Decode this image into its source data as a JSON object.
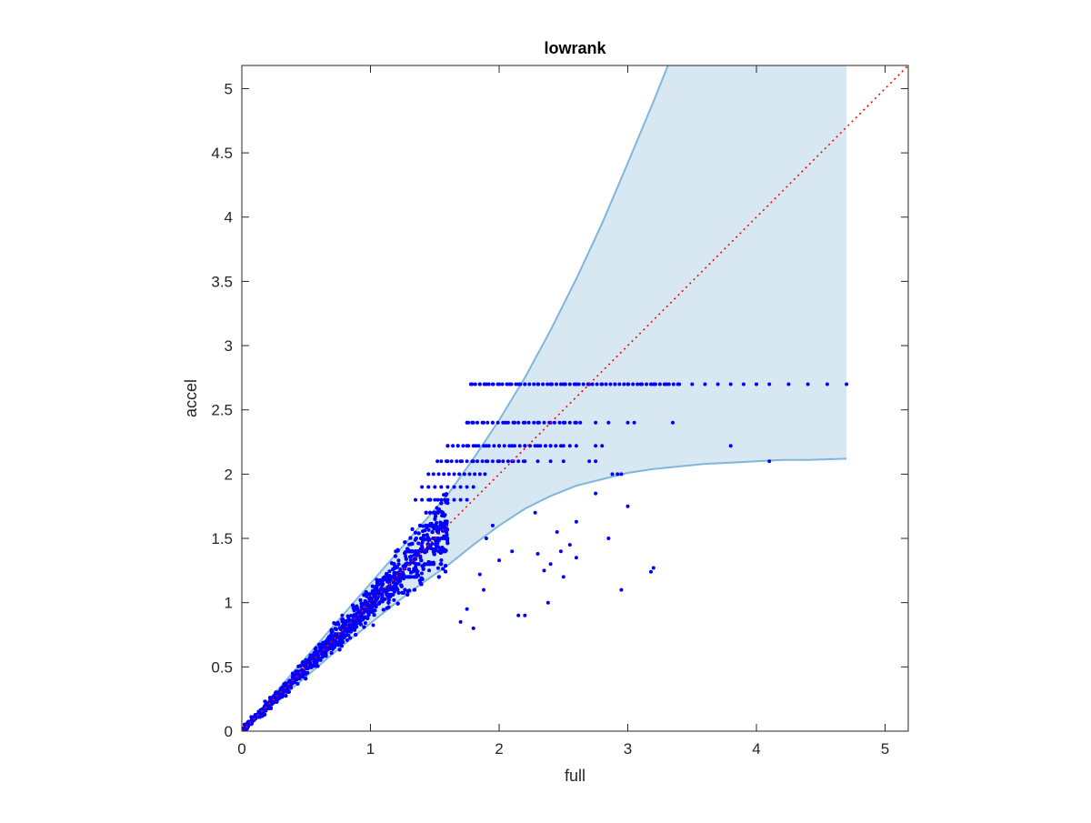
{
  "chart_data": {
    "type": "scatter",
    "title": "lowrank",
    "xlabel": "full",
    "ylabel": "accel",
    "xlim": [
      0,
      5.18
    ],
    "ylim": [
      0,
      5.18
    ],
    "xticks": [
      0,
      1,
      2,
      3,
      4,
      5
    ],
    "xtick_labels": [
      "0",
      "1",
      "2",
      "3",
      "4",
      "5"
    ],
    "yticks": [
      0,
      0.5,
      1,
      1.5,
      2,
      2.5,
      3,
      3.5,
      4,
      4.5,
      5
    ],
    "ytick_labels": [
      "0",
      "0.5",
      "1",
      "1.5",
      "2",
      "2.5",
      "3",
      "3.5",
      "4",
      "4.5",
      "5"
    ],
    "grid": false,
    "colors": {
      "points": "#0000ff",
      "band_fill": "#d8e8f3",
      "band_edge": "#7fb6dc",
      "reference_line": "#ff0000",
      "axes": "#262626"
    },
    "reference_line": {
      "x": [
        0,
        5.18
      ],
      "y": [
        0,
        5.18
      ],
      "style": "dotted"
    },
    "band": {
      "x": [
        0.05,
        0.2,
        0.4,
        0.6,
        0.8,
        1.0,
        1.2,
        1.4,
        1.6,
        1.8,
        2.0,
        2.2,
        2.4,
        2.6,
        2.8,
        3.0,
        3.2,
        3.4,
        3.6,
        3.8,
        4.0,
        4.2,
        4.4,
        4.7
      ],
      "upper": [
        0.06,
        0.23,
        0.46,
        0.69,
        0.92,
        1.15,
        1.38,
        1.61,
        1.84,
        2.12,
        2.42,
        2.75,
        3.12,
        3.52,
        3.95,
        4.42,
        4.9,
        5.4,
        5.9,
        6.4,
        6.9,
        7.4,
        7.9,
        8.6
      ],
      "lower": [
        0.04,
        0.17,
        0.34,
        0.51,
        0.68,
        0.84,
        1.0,
        1.15,
        1.29,
        1.45,
        1.6,
        1.73,
        1.83,
        1.91,
        1.96,
        2.01,
        2.04,
        2.06,
        2.08,
        2.09,
        2.1,
        2.11,
        2.11,
        2.12
      ]
    },
    "points_generated": {
      "description_count": 2600,
      "cluster_x_max": 1.6
    },
    "points": {
      "x": [
        1.79,
        1.85,
        1.9,
        1.95,
        2.0,
        2.08,
        2.15,
        2.2,
        2.3,
        2.4,
        2.5,
        2.6,
        2.7,
        2.8,
        2.9,
        3.0,
        3.1,
        3.2,
        3.3,
        3.4,
        3.5,
        3.6,
        3.7,
        3.8,
        3.9,
        4.0,
        4.1,
        4.25,
        4.4,
        4.55,
        4.7,
        1.76,
        1.8,
        1.88,
        1.95,
        2.05,
        2.12,
        2.2,
        2.3,
        2.4,
        2.5,
        2.6,
        2.75,
        2.85,
        3.0,
        3.05,
        3.35,
        1.6,
        1.68,
        1.75,
        1.82,
        1.9,
        2.0,
        2.1,
        2.2,
        2.3,
        2.4,
        2.5,
        2.55,
        2.6,
        2.75,
        2.8,
        3.8,
        1.52,
        1.6,
        1.7,
        1.8,
        1.9,
        2.0,
        2.1,
        2.2,
        2.3,
        2.4,
        2.5,
        2.7,
        2.75,
        2.95,
        4.1,
        2.6,
        2.75,
        3.0,
        2.85,
        3.2,
        3.18,
        2.95,
        2.88,
        2.55,
        2.4,
        2.2,
        2.3,
        2.38,
        2.1,
        2.0,
        1.9,
        1.85,
        1.8,
        1.75,
        1.7,
        2.5,
        2.45,
        2.28,
        2.15,
        1.95,
        1.88,
        2.35,
        2.6,
        2.92,
        2.48
      ],
      "y": [
        2.7,
        2.7,
        2.7,
        2.7,
        2.7,
        2.7,
        2.7,
        2.7,
        2.7,
        2.7,
        2.7,
        2.7,
        2.7,
        2.7,
        2.7,
        2.7,
        2.7,
        2.7,
        2.7,
        2.7,
        2.7,
        2.7,
        2.7,
        2.7,
        2.7,
        2.7,
        2.7,
        2.7,
        2.7,
        2.7,
        2.7,
        2.4,
        2.4,
        2.4,
        2.4,
        2.4,
        2.4,
        2.4,
        2.4,
        2.4,
        2.4,
        2.4,
        2.4,
        2.4,
        2.4,
        2.4,
        2.4,
        2.22,
        2.22,
        2.22,
        2.22,
        2.22,
        2.22,
        2.22,
        2.22,
        2.22,
        2.22,
        2.22,
        2.22,
        2.22,
        2.22,
        2.22,
        2.22,
        2.1,
        2.1,
        2.1,
        2.1,
        2.1,
        2.1,
        2.1,
        2.1,
        2.1,
        2.1,
        2.1,
        2.1,
        2.1,
        2.0,
        2.1,
        1.63,
        1.85,
        1.75,
        1.5,
        1.27,
        1.24,
        1.1,
        2.0,
        1.45,
        1.3,
        0.9,
        1.38,
        1.0,
        1.4,
        1.33,
        1.5,
        1.22,
        0.8,
        0.95,
        0.85,
        1.2,
        1.55,
        1.7,
        0.9,
        1.6,
        1.1,
        1.25,
        1.35,
        2.0,
        1.4
      ]
    }
  }
}
